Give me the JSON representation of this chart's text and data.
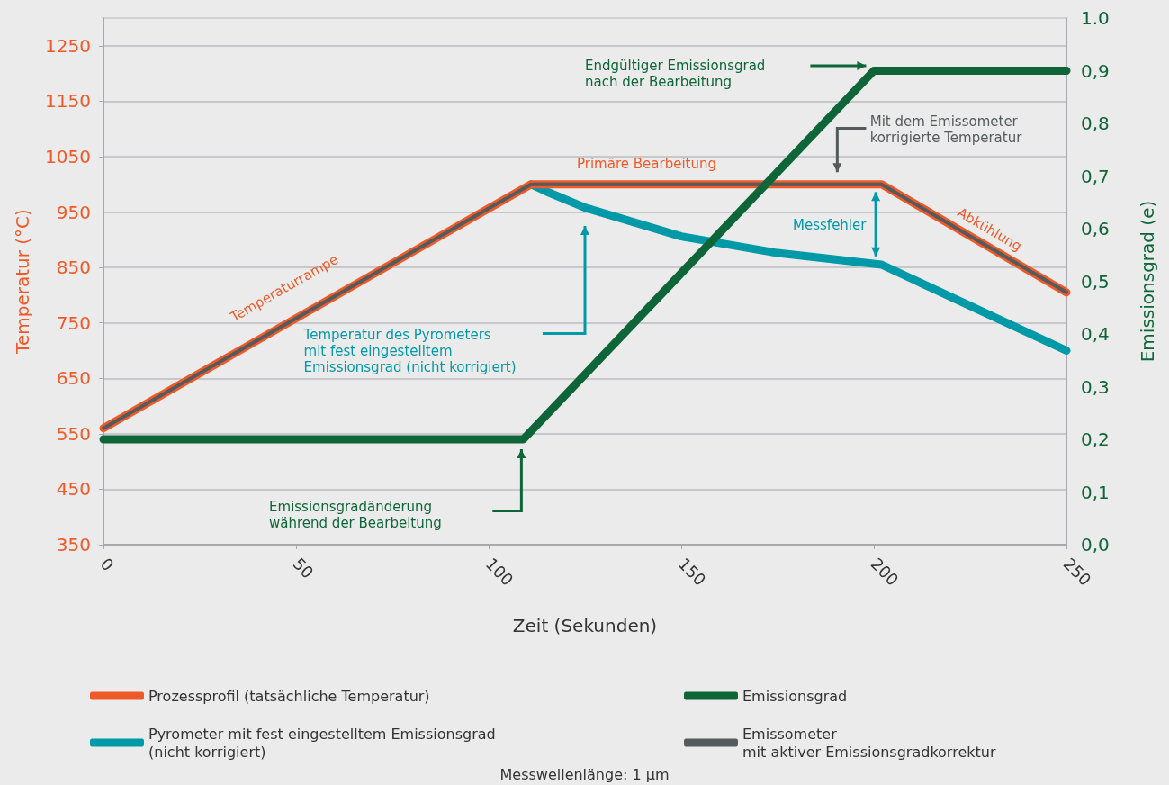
{
  "chart_data": {
    "type": "line",
    "xlabel": "Zeit (Sekunden)",
    "ylabel": "Temperatur (°C)",
    "y2label": "Emissionsgrad (e)",
    "xlim": [
      0,
      250
    ],
    "xticks": [
      0,
      50,
      100,
      150,
      200,
      250
    ],
    "ylim": [
      350,
      1300
    ],
    "yticks": [
      350,
      450,
      550,
      650,
      750,
      850,
      950,
      1050,
      1150,
      1250
    ],
    "y2lim": [
      0,
      1
    ],
    "y2ticks": [
      {
        "value": 0,
        "label": "0,0"
      },
      {
        "value": 0.1,
        "label": "0,1"
      },
      {
        "value": 0.2,
        "label": "0,2"
      },
      {
        "value": 0.3,
        "label": "0,3"
      },
      {
        "value": 0.4,
        "label": "0,4"
      },
      {
        "value": 0.5,
        "label": "0,5"
      },
      {
        "value": 0.6,
        "label": "0,6"
      },
      {
        "value": 0.7,
        "label": "0,7"
      },
      {
        "value": 0.8,
        "label": "0,8"
      },
      {
        "value": 0.9,
        "label": "0,9"
      },
      {
        "value": 1,
        "label": "1.0"
      }
    ],
    "series": [
      {
        "name": "Pyrometer mit fest eingestelltem Emissionsgrad\n(nicht korrigiert)",
        "color": "#0099a8",
        "x": [
          111,
          115,
          125,
          150,
          175,
          202,
          250
        ],
        "values": [
          1000,
          987,
          958,
          906,
          876,
          855,
          700
        ]
      },
      {
        "name": "Prozessprofil (tatsächliche Temperatur)",
        "color": "#f05a28",
        "x": [
          0,
          111,
          202,
          250
        ],
        "values": [
          560,
          1000,
          1000,
          805
        ]
      },
      {
        "name": "Emissometer\nmit aktiver Emissionsgradkorrektur",
        "color": "#555a5c",
        "x": [
          0,
          111,
          202,
          250
        ],
        "values": [
          560,
          1000,
          1000,
          805
        ]
      },
      {
        "name": "Emissionsgrad",
        "color": "#0e6638",
        "axis": "y2",
        "x": [
          0,
          109,
          200,
          250
        ],
        "values": [
          0.2,
          0.2,
          0.9,
          0.9
        ]
      }
    ],
    "annotations": [
      "Temperaturrampe",
      "Primäre Bearbeitung",
      "Abkühlung",
      "Messfehler",
      "Temperatur des Pyrometers\nmit fest eingestelltem\nEmissionsgrad (nicht korrigiert)",
      "Endgültiger Emissionsgrad\nnach der Bearbeitung",
      "Mit dem Emissometer\nkorrigierte Temperatur",
      "Emissionsgradänderung\nwährend der Bearbeitung",
      "Messwellenlänge: 1 µm"
    ],
    "grid": "y",
    "legend": "bottom",
    "marker": "none",
    "line_style": "solid"
  }
}
